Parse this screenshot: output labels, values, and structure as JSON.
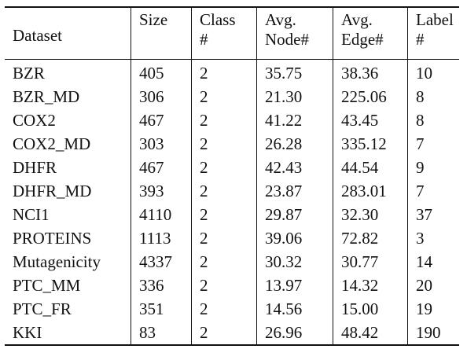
{
  "table": {
    "headers": [
      {
        "line1": "Dataset",
        "line2": ""
      },
      {
        "line1": "Size",
        "line2": ""
      },
      {
        "line1": "Class",
        "line2": "#"
      },
      {
        "line1": "Avg.",
        "line2": "Node#"
      },
      {
        "line1": "Avg.",
        "line2": "Edge#"
      },
      {
        "line1": "Label",
        "line2": "#"
      }
    ],
    "rows": [
      [
        "BZR",
        "405",
        "2",
        "35.75",
        "38.36",
        "10"
      ],
      [
        "BZR_MD",
        "306",
        "2",
        "21.30",
        "225.06",
        "8"
      ],
      [
        "COX2",
        "467",
        "2",
        "41.22",
        "43.45",
        "8"
      ],
      [
        "COX2_MD",
        "303",
        "2",
        "26.28",
        "335.12",
        "7"
      ],
      [
        "DHFR",
        "467",
        "2",
        "42.43",
        "44.54",
        "9"
      ],
      [
        "DHFR_MD",
        "393",
        "2",
        "23.87",
        "283.01",
        "7"
      ],
      [
        "NCI1",
        "4110",
        "2",
        "29.87",
        "32.30",
        "37"
      ],
      [
        "PROTEINS",
        "1113",
        "2",
        "39.06",
        "72.82",
        "3"
      ],
      [
        "Mutagenicity",
        "4337",
        "2",
        "30.32",
        "30.77",
        "14"
      ],
      [
        "PTC_MM",
        "336",
        "2",
        "13.97",
        "14.32",
        "20"
      ],
      [
        "PTC_FR",
        "351",
        "2",
        "14.56",
        "15.00",
        "19"
      ],
      [
        "KKI",
        "83",
        "2",
        "26.96",
        "48.42",
        "190"
      ]
    ]
  }
}
